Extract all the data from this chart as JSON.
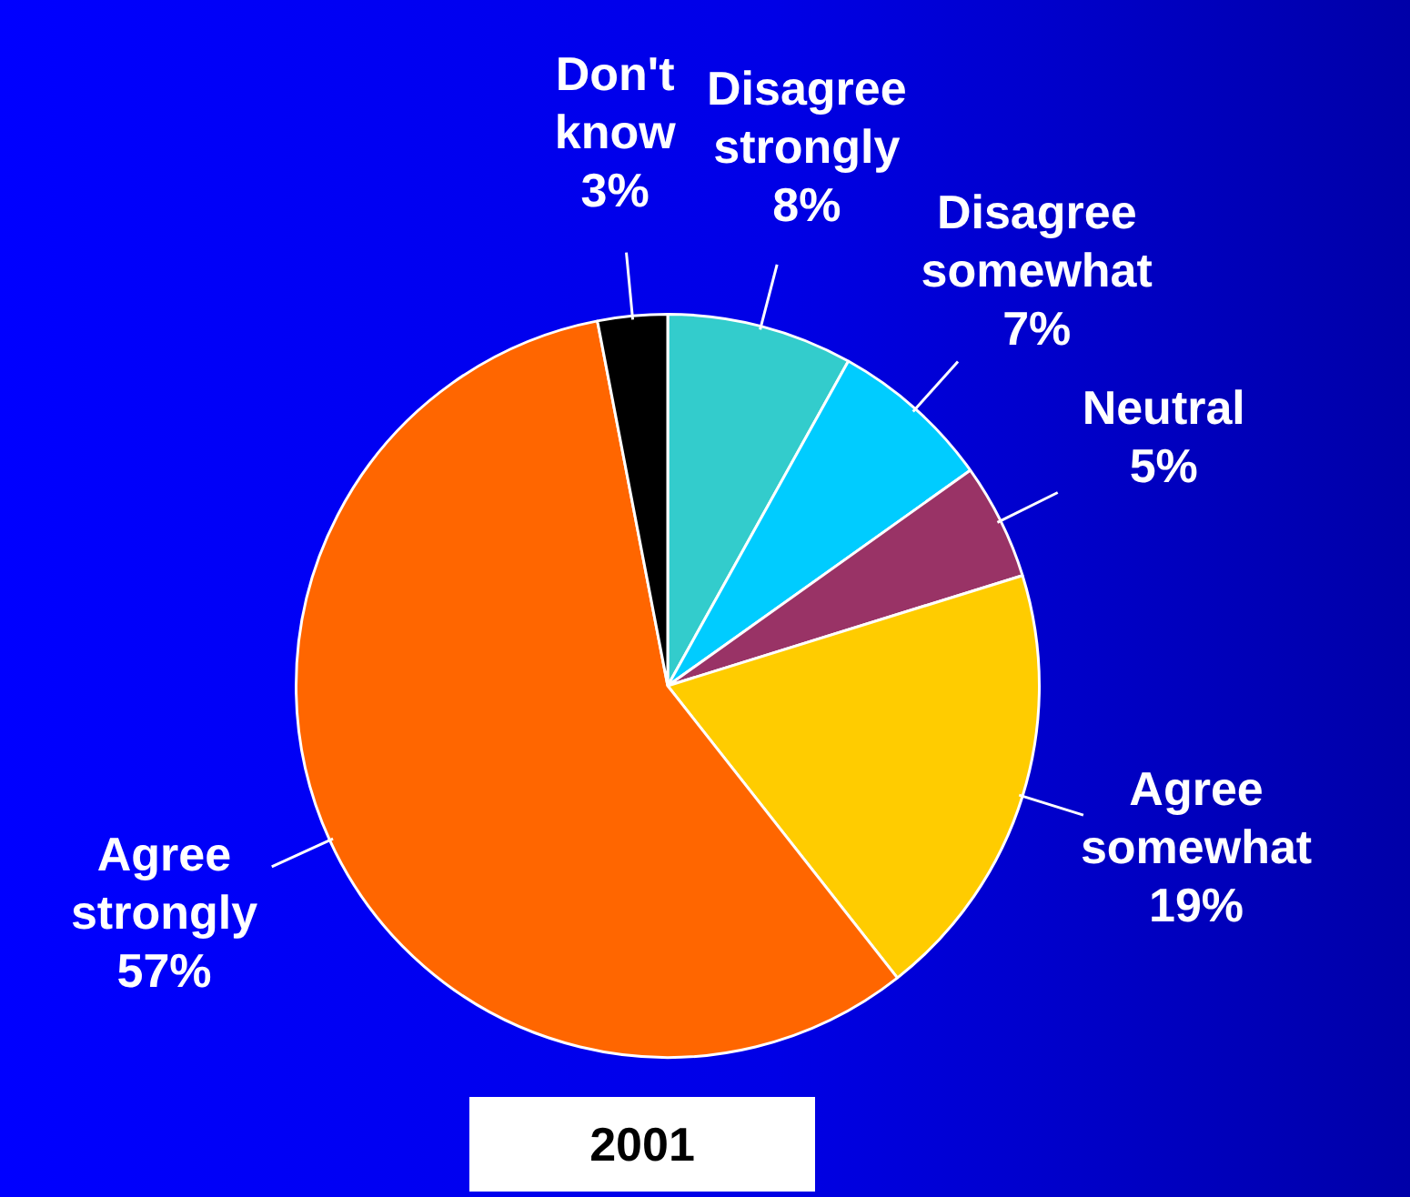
{
  "chart_data": {
    "type": "pie",
    "title": "2001",
    "categories": [
      "Disagree strongly",
      "Disagree somewhat",
      "Neutral",
      "Agree somewhat",
      "Agree strongly",
      "Don't know"
    ],
    "values": [
      8,
      7,
      5,
      19,
      57,
      3
    ],
    "value_labels": [
      "8%",
      "7%",
      "5%",
      "19%",
      "57%",
      "3%"
    ],
    "colors": [
      "#33cccc",
      "#00ccff",
      "#993366",
      "#ffcc00",
      "#ff6600",
      "#000000"
    ],
    "legend": false
  }
}
